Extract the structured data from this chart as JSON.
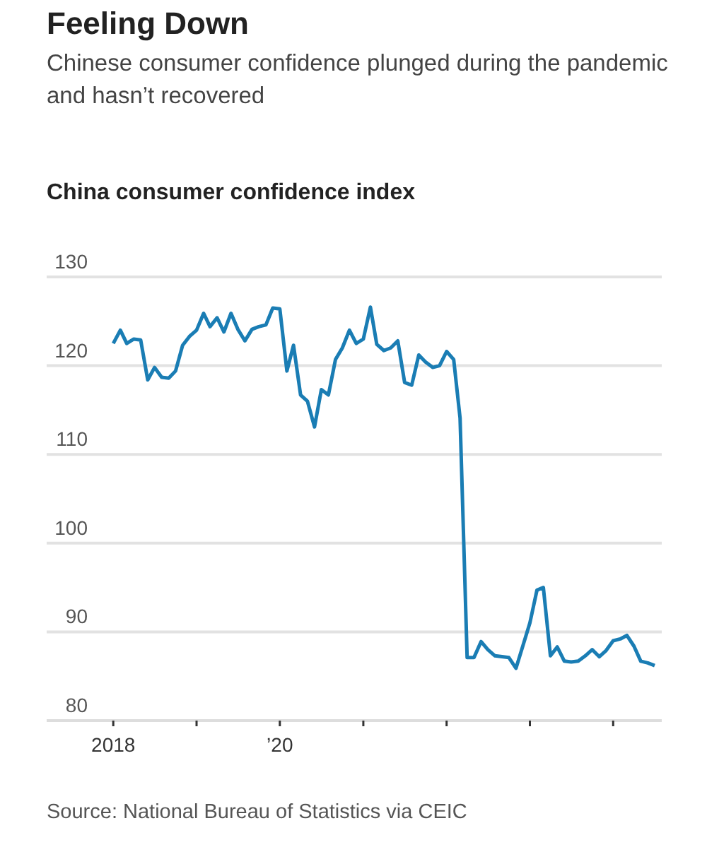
{
  "chart_data": {
    "type": "line",
    "title": "Feeling Down",
    "subtitle": "Chinese consumer confidence plunged during the pandemic and hasn’t recovered",
    "ylabel": "China consumer confidence index",
    "annotations": [
      "Source: National Bureau of Statistics via CEIC"
    ],
    "x": [
      "2018-01",
      "2018-02",
      "2018-03",
      "2018-04",
      "2018-05",
      "2018-06",
      "2018-07",
      "2018-08",
      "2018-09",
      "2018-10",
      "2018-11",
      "2018-12",
      "2019-01",
      "2019-02",
      "2019-03",
      "2019-04",
      "2019-05",
      "2019-06",
      "2019-07",
      "2019-08",
      "2019-09",
      "2019-10",
      "2019-11",
      "2019-12",
      "2020-01",
      "2020-02",
      "2020-03",
      "2020-04",
      "2020-05",
      "2020-06",
      "2020-07",
      "2020-08",
      "2020-09",
      "2020-10",
      "2020-11",
      "2020-12",
      "2021-01",
      "2021-02",
      "2021-03",
      "2021-04",
      "2021-05",
      "2021-06",
      "2021-07",
      "2021-08",
      "2021-09",
      "2021-10",
      "2021-11",
      "2021-12",
      "2022-01",
      "2022-02",
      "2022-03",
      "2022-04",
      "2022-05",
      "2022-06",
      "2022-07",
      "2022-08",
      "2022-09",
      "2022-10",
      "2022-11",
      "2022-12",
      "2023-01",
      "2023-02",
      "2023-03",
      "2023-04",
      "2023-05",
      "2023-06",
      "2023-07",
      "2023-08",
      "2023-09",
      "2023-10",
      "2023-11",
      "2023-12",
      "2024-01",
      "2024-02",
      "2024-03",
      "2024-04",
      "2024-05",
      "2024-06",
      "2024-07"
    ],
    "series": [
      {
        "color": "#1a7db4",
        "values": [
          122.5,
          124.0,
          122.5,
          123.0,
          122.9,
          118.4,
          119.8,
          118.7,
          118.6,
          119.4,
          122.3,
          123.3,
          124.0,
          125.9,
          124.4,
          125.4,
          123.8,
          125.9,
          124.1,
          122.8,
          124.1,
          124.4,
          124.6,
          126.5,
          126.4,
          119.4,
          122.3,
          116.7,
          116.0,
          113.1,
          117.3,
          116.7,
          120.7,
          122.0,
          124.0,
          122.5,
          123.0,
          126.6,
          122.4,
          121.7,
          122.0,
          122.8,
          118.1,
          117.8,
          121.2,
          120.4,
          119.8,
          120.0,
          121.6,
          120.7,
          114.1,
          87.1,
          87.1,
          88.9,
          88.0,
          87.3,
          87.2,
          87.1,
          85.9,
          88.4,
          91.0,
          94.7,
          95.0,
          87.3,
          88.3,
          86.7,
          86.6,
          86.7,
          87.3,
          88.0,
          87.2,
          87.9,
          89.0,
          89.2,
          89.6,
          88.4,
          86.7,
          86.5,
          86.2
        ]
      }
    ],
    "xlim": [
      "2017-03-15",
      "2024-08"
    ],
    "xticks": [
      {
        "value": "2018",
        "label": "2018"
      },
      {
        "value": "2019",
        "label": null
      },
      {
        "value": "2020",
        "label": "’20"
      },
      {
        "value": "2021",
        "label": null
      },
      {
        "value": "2022",
        "label": null
      },
      {
        "value": "2023",
        "label": null
      },
      {
        "value": "2024",
        "label": null
      }
    ],
    "ylim": [
      80,
      130
    ],
    "yticks": [
      80,
      90,
      100,
      110,
      120,
      130
    ],
    "grid": "y",
    "marker": "none",
    "line_style": "solid"
  }
}
